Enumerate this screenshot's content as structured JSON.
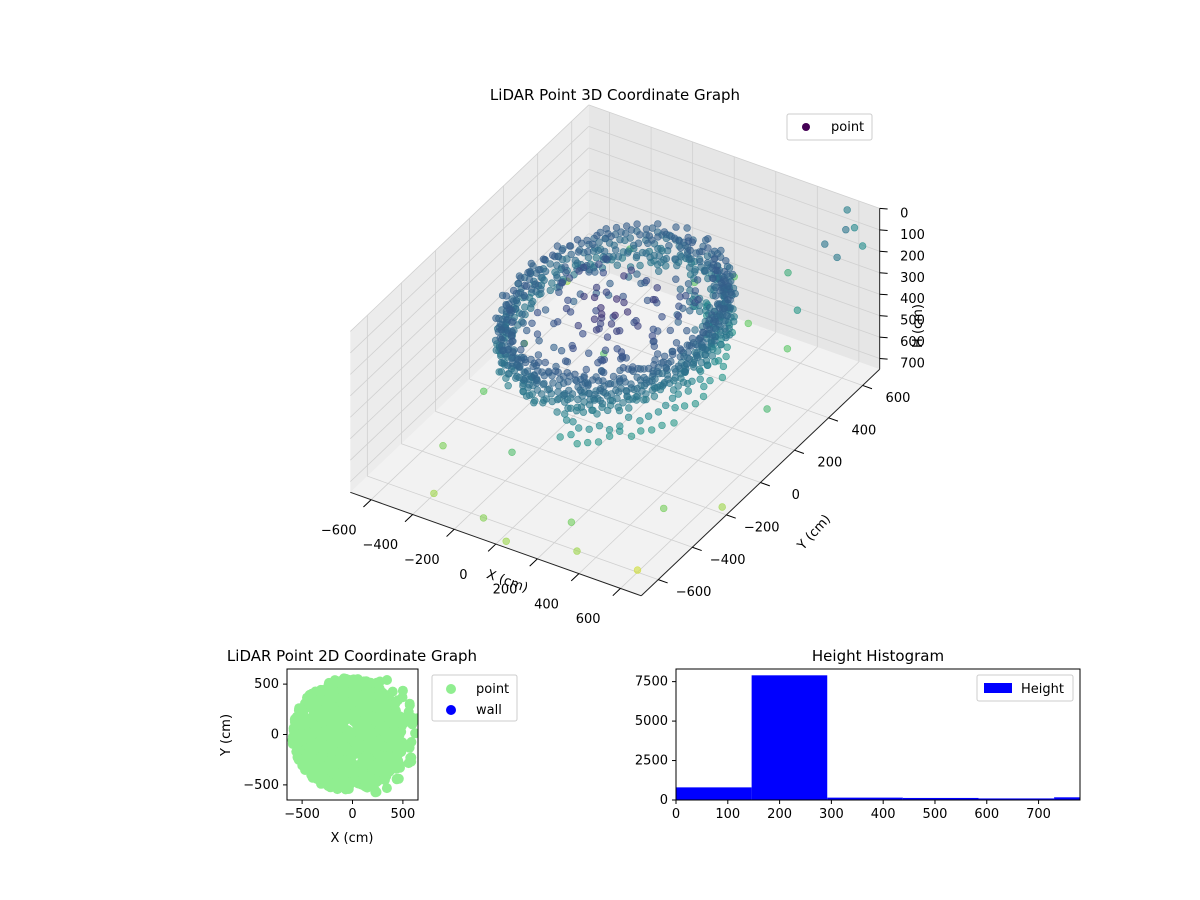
{
  "chart_data": [
    {
      "type": "scatter",
      "title": "LiDAR Point 3D Coordinate Graph",
      "xlabel": "X (cm)",
      "ylabel": "Y (cm)",
      "zlabel": "H (cm)",
      "xlim": [
        -700,
        700
      ],
      "ylim": [
        -700,
        700
      ],
      "zlim": [
        750,
        0
      ],
      "x_ticks": [
        "−600",
        "−400",
        "−200",
        "0",
        "200",
        "400",
        "600"
      ],
      "y_ticks": [
        "−600",
        "−400",
        "−200",
        "0",
        "200",
        "400",
        "600"
      ],
      "z_ticks": [
        "0",
        "100",
        "200",
        "300",
        "400",
        "500",
        "600",
        "700"
      ],
      "legend": [
        "point"
      ],
      "legend_position": "top-right",
      "colormap": "viridis",
      "grid": true,
      "series": [
        {
          "name": "point",
          "description": "Dense ring-shaped point cloud of radius ~450 cm at heights ~150–300 cm, plus scattered points extending to ±700 cm and heights up to ~750 cm",
          "cloud": {
            "radius": 450,
            "height_min": 150,
            "height_max": 300
          },
          "outliers": [
            [
              -640,
              500,
              650
            ],
            [
              -600,
              200,
              700
            ],
            [
              -550,
              -100,
              680
            ],
            [
              -500,
              -400,
              690
            ],
            [
              -420,
              600,
              500
            ],
            [
              -380,
              -600,
              720
            ],
            [
              -300,
              300,
              720
            ],
            [
              -250,
              -300,
              710
            ],
            [
              -150,
              650,
              600
            ],
            [
              -100,
              -650,
              700
            ],
            [
              0,
              700,
              560
            ],
            [
              50,
              -700,
              720
            ],
            [
              150,
              600,
              650
            ],
            [
              200,
              -500,
              730
            ],
            [
              300,
              650,
              400
            ],
            [
              350,
              -650,
              700
            ],
            [
              420,
              500,
              600
            ],
            [
              480,
              -300,
              720
            ],
            [
              550,
              400,
              300
            ],
            [
              600,
              -600,
              740
            ],
            [
              650,
              100,
              500
            ],
            [
              680,
              -200,
              720
            ],
            [
              700,
              600,
              100
            ],
            [
              620,
              650,
              80
            ],
            [
              560,
              680,
              40
            ],
            [
              600,
              500,
              50
            ],
            [
              660,
              550,
              0
            ],
            [
              700,
              450,
              40
            ]
          ]
        }
      ]
    },
    {
      "type": "scatter",
      "title": "LiDAR Point 2D Coordinate Graph",
      "xlabel": "X (cm)",
      "ylabel": "Y (cm)",
      "xlim": [
        -650,
        650
      ],
      "ylim": [
        -650,
        650
      ],
      "x_ticks": [
        "−500",
        "0",
        "500"
      ],
      "y_ticks": [
        "500",
        "0",
        "−500"
      ],
      "legend": [
        "point",
        "wall"
      ],
      "legend_position": "outside-right",
      "grid": false,
      "series": [
        {
          "name": "point",
          "color": "#90ee90",
          "description": "Green filled disc of radius ~550 cm"
        },
        {
          "name": "wall",
          "color": "#0000ff",
          "values": []
        }
      ]
    },
    {
      "type": "bar",
      "title": "Height Histogram",
      "xlabel": "",
      "ylabel": "",
      "xlim": [
        0,
        780
      ],
      "ylim": [
        0,
        8300
      ],
      "x_ticks": [
        "0",
        "100",
        "200",
        "300",
        "400",
        "500",
        "600",
        "700"
      ],
      "y_ticks": [
        "0",
        "2500",
        "5000",
        "7500"
      ],
      "legend": [
        "Height"
      ],
      "legend_position": "top-right",
      "color": "#0000ff",
      "grid": false,
      "bins": [
        {
          "start": 0,
          "end": 146,
          "count": 800
        },
        {
          "start": 146,
          "end": 292,
          "count": 7900
        },
        {
          "start": 292,
          "end": 438,
          "count": 150
        },
        {
          "start": 438,
          "end": 584,
          "count": 130
        },
        {
          "start": 584,
          "end": 730,
          "count": 100
        },
        {
          "start": 730,
          "end": 876,
          "count": 170
        }
      ]
    }
  ]
}
